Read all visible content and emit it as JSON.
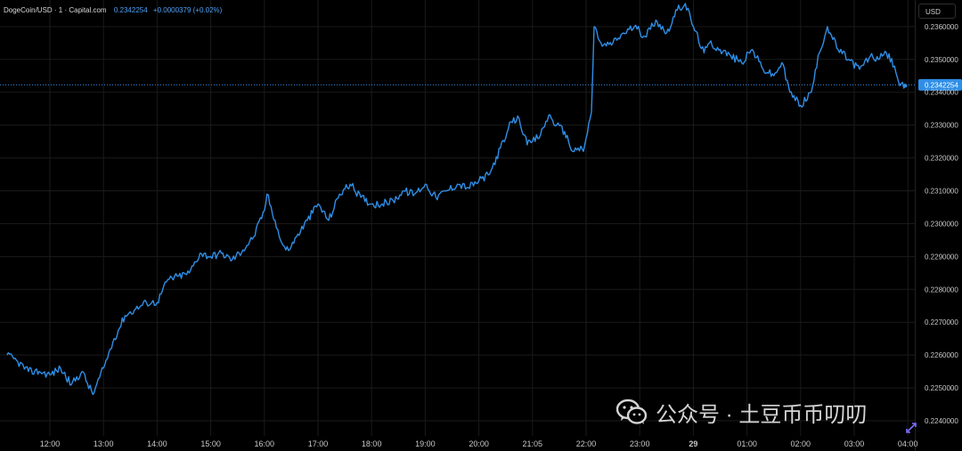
{
  "header": {
    "symbol": "DogeCoin/USD · 1 · Capital.com",
    "price": "0.2342254",
    "change": "+0.0000379 (+0.02%)"
  },
  "currency_button": "USD",
  "watermark_text": "公众号 · 土豆币币叨叨",
  "colors": {
    "background": "#000000",
    "line": "#2f8ee6",
    "grid": "#1b1b1b",
    "axis_text": "#c8c8c8",
    "price_tag": "#2f8ee6"
  },
  "chart_data": {
    "type": "line",
    "title": "DogeCoin/USD · 1 · Capital.com",
    "xlabel": "",
    "ylabel": "",
    "ylim": [
      0.22335,
      0.23755
    ],
    "x_ticks": [
      "12:00",
      "13:00",
      "14:00",
      "15:00",
      "16:00",
      "17:00",
      "18:00",
      "19:00",
      "20:00",
      "21:05",
      "22:00",
      "23:00",
      "29",
      "01:00",
      "02:00",
      "03:00",
      "04:00"
    ],
    "y_ticks": [
      "0.2360000",
      "0.2350000",
      "0.2340000",
      "0.2330000",
      "0.2320000",
      "0.2310000",
      "0.2300000",
      "0.2290000",
      "0.2280000",
      "0.2270000",
      "0.2260000",
      "0.2250000",
      "0.2240000"
    ],
    "y_tick_values": [
      0.236,
      0.235,
      0.234,
      0.233,
      0.232,
      0.231,
      0.23,
      0.229,
      0.228,
      0.227,
      0.226,
      0.225,
      0.224
    ],
    "last_price_label": "0.2342254",
    "last_price": 0.2342254,
    "series": [
      {
        "x": [
          11.2,
          11.4,
          11.6,
          11.8,
          12.0,
          12.2,
          12.4,
          12.6,
          12.8,
          13.0,
          13.2,
          13.4,
          13.6,
          13.8,
          14.0,
          14.2,
          14.4,
          14.6,
          14.8,
          15.0,
          15.2,
          15.4,
          15.6,
          15.8,
          16.0,
          16.05,
          16.2,
          16.3,
          16.4,
          16.5,
          16.6,
          16.8,
          17.0,
          17.2,
          17.4,
          17.6,
          17.8,
          18.0,
          18.2,
          18.4,
          18.6,
          18.8,
          19.0,
          19.2,
          19.4,
          19.6,
          19.8,
          20.0,
          20.2,
          20.4,
          20.5,
          20.6,
          20.75,
          20.9,
          21.0,
          21.15,
          21.3,
          21.45,
          21.6,
          21.75,
          21.85,
          21.95,
          22.0,
          22.1,
          22.15,
          22.3,
          22.5,
          22.7,
          22.9,
          23.1,
          23.3,
          23.5,
          23.7,
          23.85,
          24.0,
          24.2,
          24.3,
          24.5,
          24.7,
          24.9,
          25.1,
          25.3,
          25.5,
          25.65,
          25.8,
          26.0,
          26.2,
          26.35,
          26.5,
          26.7,
          26.9,
          27.1,
          27.3,
          27.45,
          27.6,
          27.75,
          27.85,
          27.95
        ],
        "values": [
          0.226,
          0.2258,
          0.2255,
          0.2255,
          0.2254,
          0.2256,
          0.2251,
          0.2255,
          0.2248,
          0.2256,
          0.2265,
          0.2272,
          0.2274,
          0.2276,
          0.2276,
          0.2283,
          0.2284,
          0.2285,
          0.2291,
          0.229,
          0.2291,
          0.2289,
          0.2292,
          0.2296,
          0.2304,
          0.2309,
          0.2301,
          0.2295,
          0.2292,
          0.2293,
          0.2296,
          0.2301,
          0.2306,
          0.2301,
          0.2309,
          0.2312,
          0.2308,
          0.2306,
          0.2306,
          0.2307,
          0.231,
          0.2309,
          0.2312,
          0.2308,
          0.231,
          0.2312,
          0.2311,
          0.2313,
          0.2315,
          0.2323,
          0.2326,
          0.2331,
          0.2332,
          0.2324,
          0.2325,
          0.2327,
          0.2333,
          0.233,
          0.2328,
          0.2322,
          0.2323,
          0.2322,
          0.2326,
          0.2334,
          0.236,
          0.2354,
          0.2355,
          0.2358,
          0.236,
          0.2357,
          0.2362,
          0.2358,
          0.2365,
          0.2367,
          0.236,
          0.2352,
          0.2355,
          0.2353,
          0.2351,
          0.2349,
          0.2353,
          0.2347,
          0.2345,
          0.2349,
          0.234,
          0.2336,
          0.234,
          0.2352,
          0.236,
          0.2353,
          0.235,
          0.2347,
          0.2351,
          0.235,
          0.2352,
          0.2348,
          0.2342,
          0.2342
        ]
      }
    ]
  }
}
